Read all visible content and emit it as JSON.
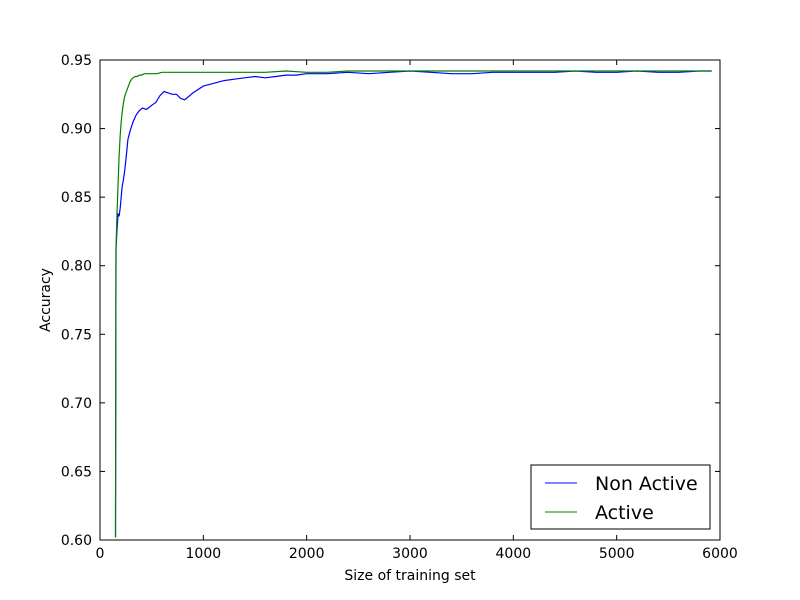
{
  "chart_data": {
    "type": "line",
    "title": "",
    "xlabel": "Size of training set",
    "ylabel": "Accuracy",
    "xlim": [
      0,
      6000
    ],
    "ylim": [
      0.6,
      0.95
    ],
    "x_ticks": [
      0,
      1000,
      2000,
      3000,
      4000,
      5000,
      6000
    ],
    "x_tick_labels": [
      "0",
      "1000",
      "2000",
      "3000",
      "4000",
      "5000",
      "6000"
    ],
    "y_ticks": [
      0.6,
      0.65,
      0.7,
      0.75,
      0.8,
      0.85,
      0.9,
      0.95
    ],
    "y_tick_labels": [
      "0.60",
      "0.65",
      "0.70",
      "0.75",
      "0.80",
      "0.85",
      "0.90",
      "0.95"
    ],
    "grid": false,
    "legend": {
      "placement": "bottom-right"
    },
    "series": [
      {
        "name": "Non Active",
        "color": "#0000ff",
        "x": [
          150,
          155,
          165,
          175,
          185,
          195,
          205,
          215,
          225,
          240,
          255,
          270,
          290,
          320,
          350,
          380,
          410,
          450,
          500,
          540,
          580,
          620,
          660,
          700,
          740,
          780,
          820,
          900,
          1000,
          1100,
          1200,
          1300,
          1400,
          1500,
          1600,
          1700,
          1800,
          1900,
          2000,
          2200,
          2400,
          2600,
          2800,
          3000,
          3200,
          3400,
          3600,
          3800,
          4000,
          4200,
          4400,
          4600,
          4800,
          5000,
          5200,
          5400,
          5600,
          5800,
          5920
        ],
        "y": [
          0.602,
          0.812,
          0.826,
          0.838,
          0.836,
          0.842,
          0.85,
          0.858,
          0.862,
          0.87,
          0.88,
          0.892,
          0.898,
          0.905,
          0.91,
          0.913,
          0.915,
          0.914,
          0.917,
          0.919,
          0.924,
          0.927,
          0.926,
          0.925,
          0.925,
          0.922,
          0.921,
          0.926,
          0.931,
          0.933,
          0.935,
          0.936,
          0.937,
          0.938,
          0.937,
          0.938,
          0.939,
          0.939,
          0.94,
          0.94,
          0.941,
          0.94,
          0.941,
          0.942,
          0.941,
          0.94,
          0.94,
          0.941,
          0.941,
          0.941,
          0.941,
          0.942,
          0.941,
          0.941,
          0.942,
          0.941,
          0.941,
          0.942,
          0.942
        ]
      },
      {
        "name": "Active",
        "color": "#008000",
        "x": [
          150,
          155,
          165,
          175,
          185,
          195,
          205,
          215,
          225,
          235,
          245,
          260,
          275,
          290,
          305,
          320,
          340,
          360,
          380,
          400,
          430,
          460,
          500,
          550,
          600,
          700,
          800,
          900,
          1000,
          1200,
          1400,
          1600,
          1800,
          2000,
          2200,
          2400,
          2600,
          2800,
          3000,
          3500,
          4000,
          4500,
          5000,
          5500,
          5920
        ],
        "y": [
          0.602,
          0.812,
          0.838,
          0.86,
          0.88,
          0.895,
          0.905,
          0.912,
          0.918,
          0.922,
          0.925,
          0.928,
          0.931,
          0.934,
          0.936,
          0.937,
          0.938,
          0.938,
          0.939,
          0.939,
          0.94,
          0.94,
          0.94,
          0.94,
          0.941,
          0.941,
          0.941,
          0.941,
          0.941,
          0.941,
          0.941,
          0.941,
          0.942,
          0.941,
          0.941,
          0.942,
          0.942,
          0.942,
          0.942,
          0.942,
          0.942,
          0.942,
          0.942,
          0.942,
          0.942
        ]
      }
    ]
  }
}
